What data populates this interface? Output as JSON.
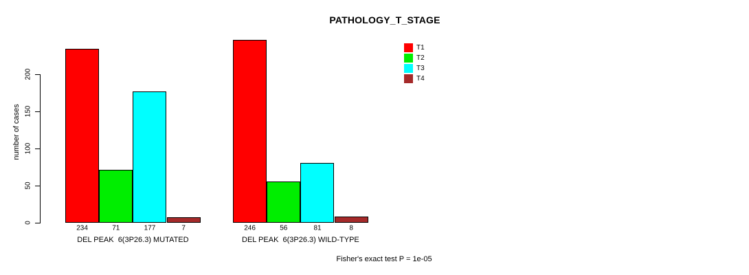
{
  "chart_data": {
    "type": "bar",
    "title": "PATHOLOGY_T_STAGE",
    "ylabel": "number of cases",
    "xlabel": "",
    "yticks": [
      0,
      50,
      100,
      150,
      200
    ],
    "ylim": [
      0,
      246
    ],
    "grid": false,
    "legend_position": "top-right",
    "categories": [
      "DEL PEAK  6(3P26.3) MUTATED",
      "DEL PEAK  6(3P26.3) WILD-TYPE"
    ],
    "series": [
      {
        "name": "T1",
        "color": "#ff0000",
        "values": [
          234,
          246
        ]
      },
      {
        "name": "T2",
        "color": "#00ee00",
        "values": [
          71,
          56
        ]
      },
      {
        "name": "T3",
        "color": "#00ffff",
        "values": [
          177,
          81
        ]
      },
      {
        "name": "T4",
        "color": "#a52a2a",
        "values": [
          7,
          8
        ]
      }
    ],
    "bar_value_labels": [
      [
        234,
        71,
        177,
        7
      ],
      [
        246,
        56,
        81,
        8
      ]
    ],
    "annotation": "Fisher's exact test P = 1e-05"
  }
}
